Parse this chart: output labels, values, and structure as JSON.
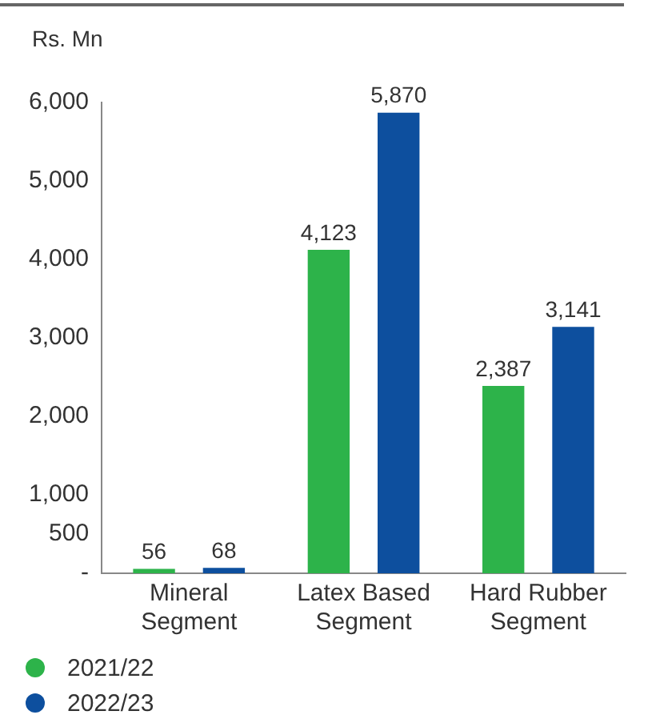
{
  "chart_data": {
    "type": "bar",
    "ylabel": "Rs. Mn",
    "categories": [
      "Mineral Segment",
      "Latex Based Segment",
      "Hard Rubber Segment"
    ],
    "series": [
      {
        "name": "2021/22",
        "color": "#2db34a",
        "values": [
          56,
          4123,
          2387
        ],
        "value_labels": [
          "56",
          "4,123",
          "2,387"
        ]
      },
      {
        "name": "2022/23",
        "color": "#0d4f9e",
        "values": [
          68,
          5870,
          3141
        ],
        "value_labels": [
          "68",
          "5,870",
          "3,141"
        ]
      }
    ],
    "ylim": [
      0,
      6000
    ],
    "yticks": [
      {
        "value": 0,
        "label": "-"
      },
      {
        "value": 500,
        "label": "500"
      },
      {
        "value": 1000,
        "label": "1,000"
      },
      {
        "value": 2000,
        "label": "2,000"
      },
      {
        "value": 3000,
        "label": "3,000"
      },
      {
        "value": 4000,
        "label": "4,000"
      },
      {
        "value": 5000,
        "label": "5,000"
      },
      {
        "value": 6000,
        "label": "6,000"
      }
    ],
    "grid": false,
    "legend": "bottom left"
  }
}
